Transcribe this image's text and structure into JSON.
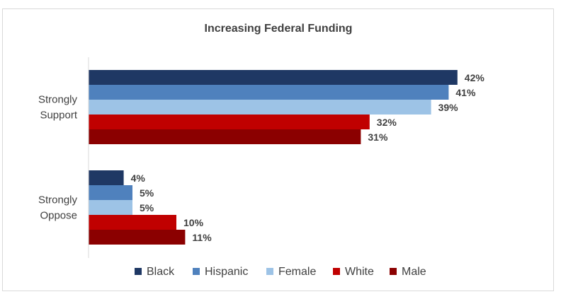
{
  "chart_data": {
    "type": "bar",
    "orientation": "horizontal",
    "title": "Increasing Federal Funding",
    "categories": [
      {
        "label_lines": [
          "Strongly",
          "Support"
        ]
      },
      {
        "label_lines": [
          "Strongly",
          "Oppose"
        ]
      }
    ],
    "series": [
      {
        "name": "Black",
        "color": "#1f3864",
        "values": [
          42,
          4
        ]
      },
      {
        "name": "Hispanic",
        "color": "#4f81bd",
        "values": [
          41,
          5
        ]
      },
      {
        "name": "Female",
        "color": "#9dc3e6",
        "values": [
          39,
          5
        ]
      },
      {
        "name": "White",
        "color": "#c00000",
        "values": [
          32,
          10
        ]
      },
      {
        "name": "Male",
        "color": "#8b0000",
        "values": [
          31,
          11
        ]
      }
    ],
    "value_suffix": "%",
    "xlim": [
      0,
      50
    ],
    "grid": false,
    "legend_position": "bottom",
    "xlabel": "",
    "ylabel": ""
  }
}
